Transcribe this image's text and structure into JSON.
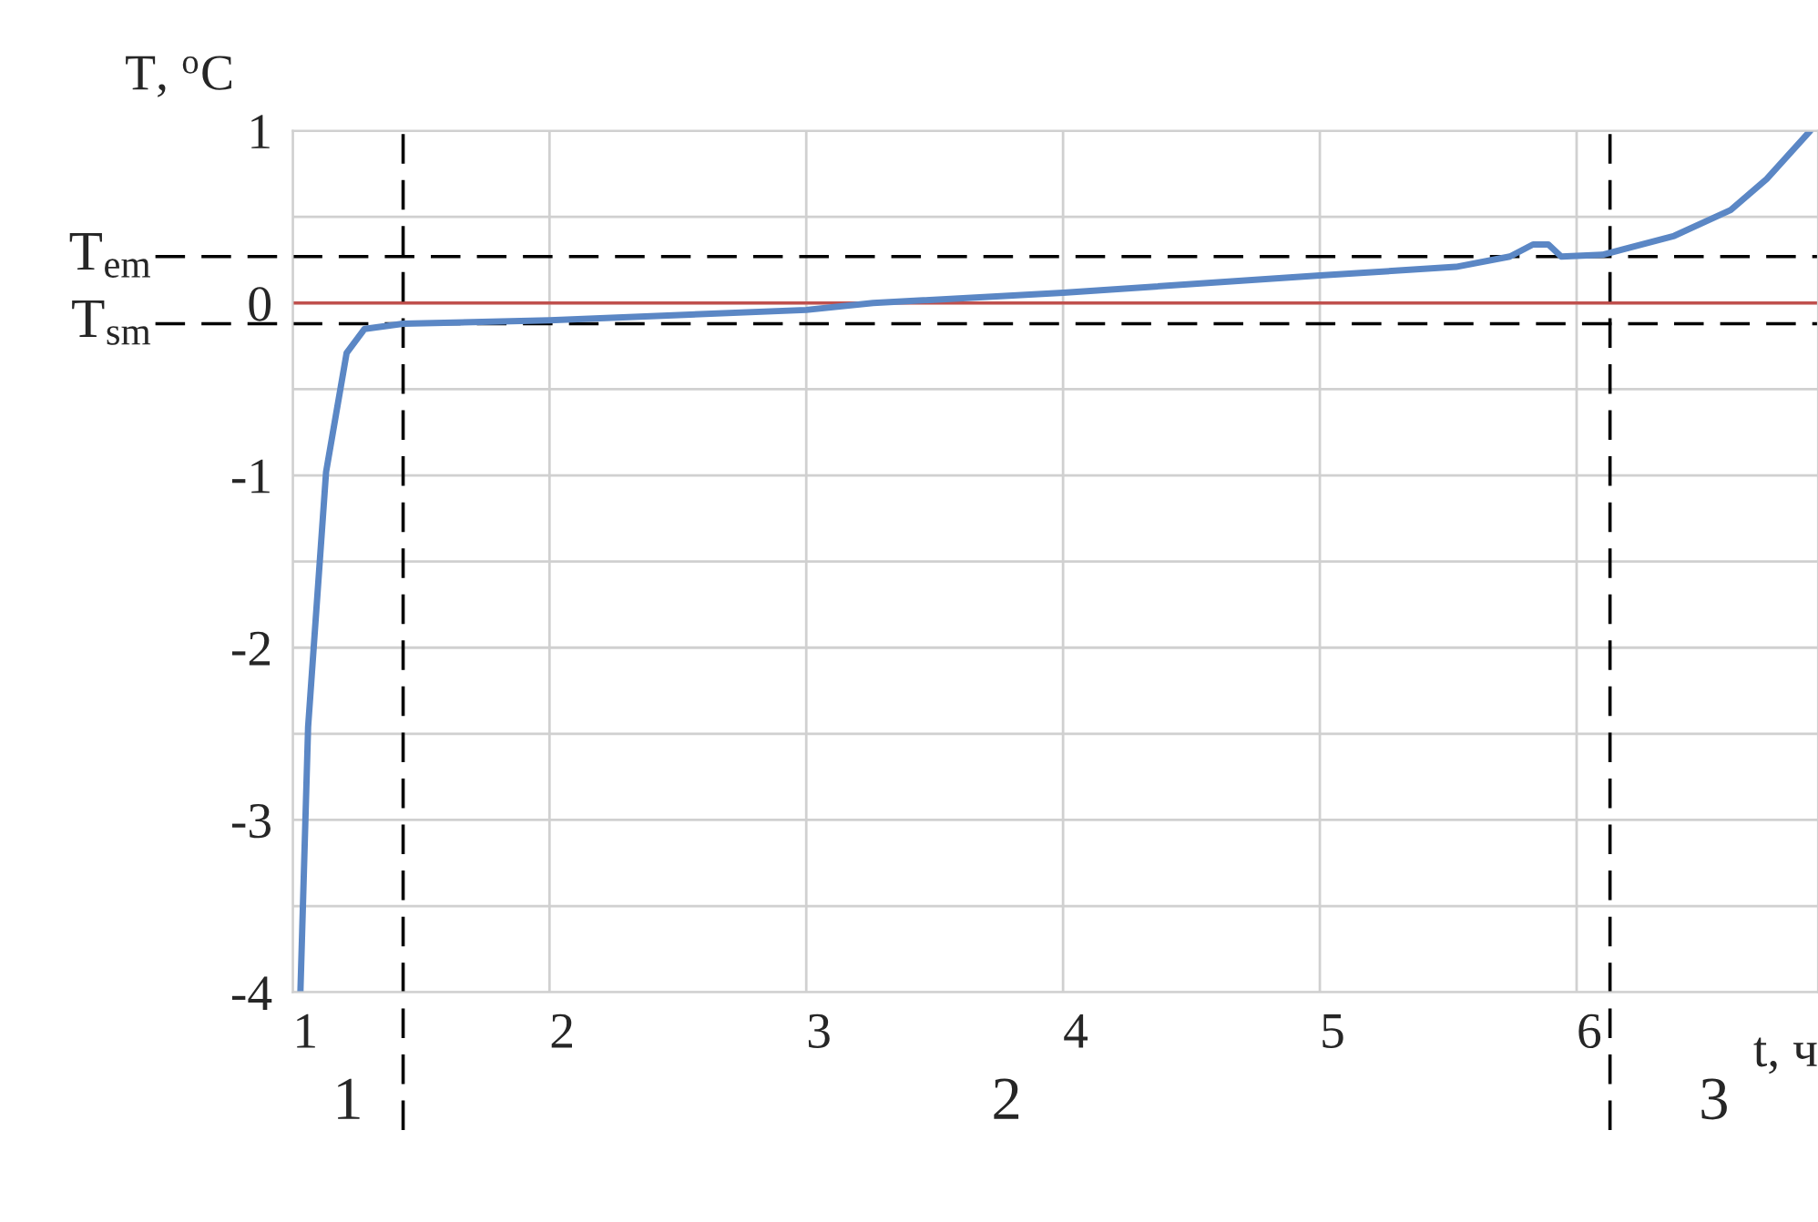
{
  "chart_data": {
    "type": "line",
    "xlabel": "t, ч",
    "ylabel": "T, $^{o}$C",
    "x": [
      1.03,
      1.06,
      1.13,
      1.21,
      1.28,
      1.43,
      2.0,
      3.0,
      3.26,
      4.0,
      5.0,
      5.53,
      5.74,
      5.83,
      5.89,
      5.94,
      6.1,
      6.38,
      6.6,
      6.74,
      6.91
    ],
    "series": [
      {
        "color": "#5b87c5",
        "values": [
          -4,
          -2.46,
          -0.98,
          -0.29,
          -0.15,
          -0.12,
          -0.1,
          -0.04,
          0,
          0.06,
          0.16,
          0.21,
          0.27,
          0.34,
          0.34,
          0.27,
          0.28,
          0.39,
          0.54,
          0.72,
          1.0
        ]
      }
    ],
    "xlim": [
      1,
      6.94
    ],
    "ylim": [
      -4,
      1
    ],
    "xticks": [
      1,
      2,
      3,
      4,
      5,
      6
    ],
    "yticks": [
      -4,
      {
        "value": -3.5,
        "label": null
      },
      -3,
      {
        "value": -2.5,
        "label": null
      },
      -2,
      {
        "value": -1.5,
        "label": null
      },
      -1,
      {
        "value": -0.5,
        "label": null
      },
      0,
      {
        "value": 0.5,
        "label": null
      },
      1
    ],
    "grid": true,
    "line_style": "solid",
    "marker": "none",
    "ref_lines": [
      {
        "axis": "y",
        "value": 0,
        "label": null,
        "color": "#c0504d",
        "line_style": "solid"
      },
      {
        "axis": "y",
        "value": 0.27,
        "label": "T$_{em}$",
        "color": "#000000",
        "line_style": "dashed"
      },
      {
        "axis": "y",
        "value": -0.12,
        "label": "T$_{sm}$",
        "color": "#000000",
        "line_style": "dashed"
      },
      {
        "axis": "x",
        "value": 1.43,
        "label": null,
        "color": "#000000",
        "line_style": "dashed"
      },
      {
        "axis": "x",
        "value": 6.13,
        "label": null,
        "color": "#000000",
        "line_style": "dashed"
      }
    ],
    "annotations": [
      "1",
      "2",
      "3"
    ]
  }
}
